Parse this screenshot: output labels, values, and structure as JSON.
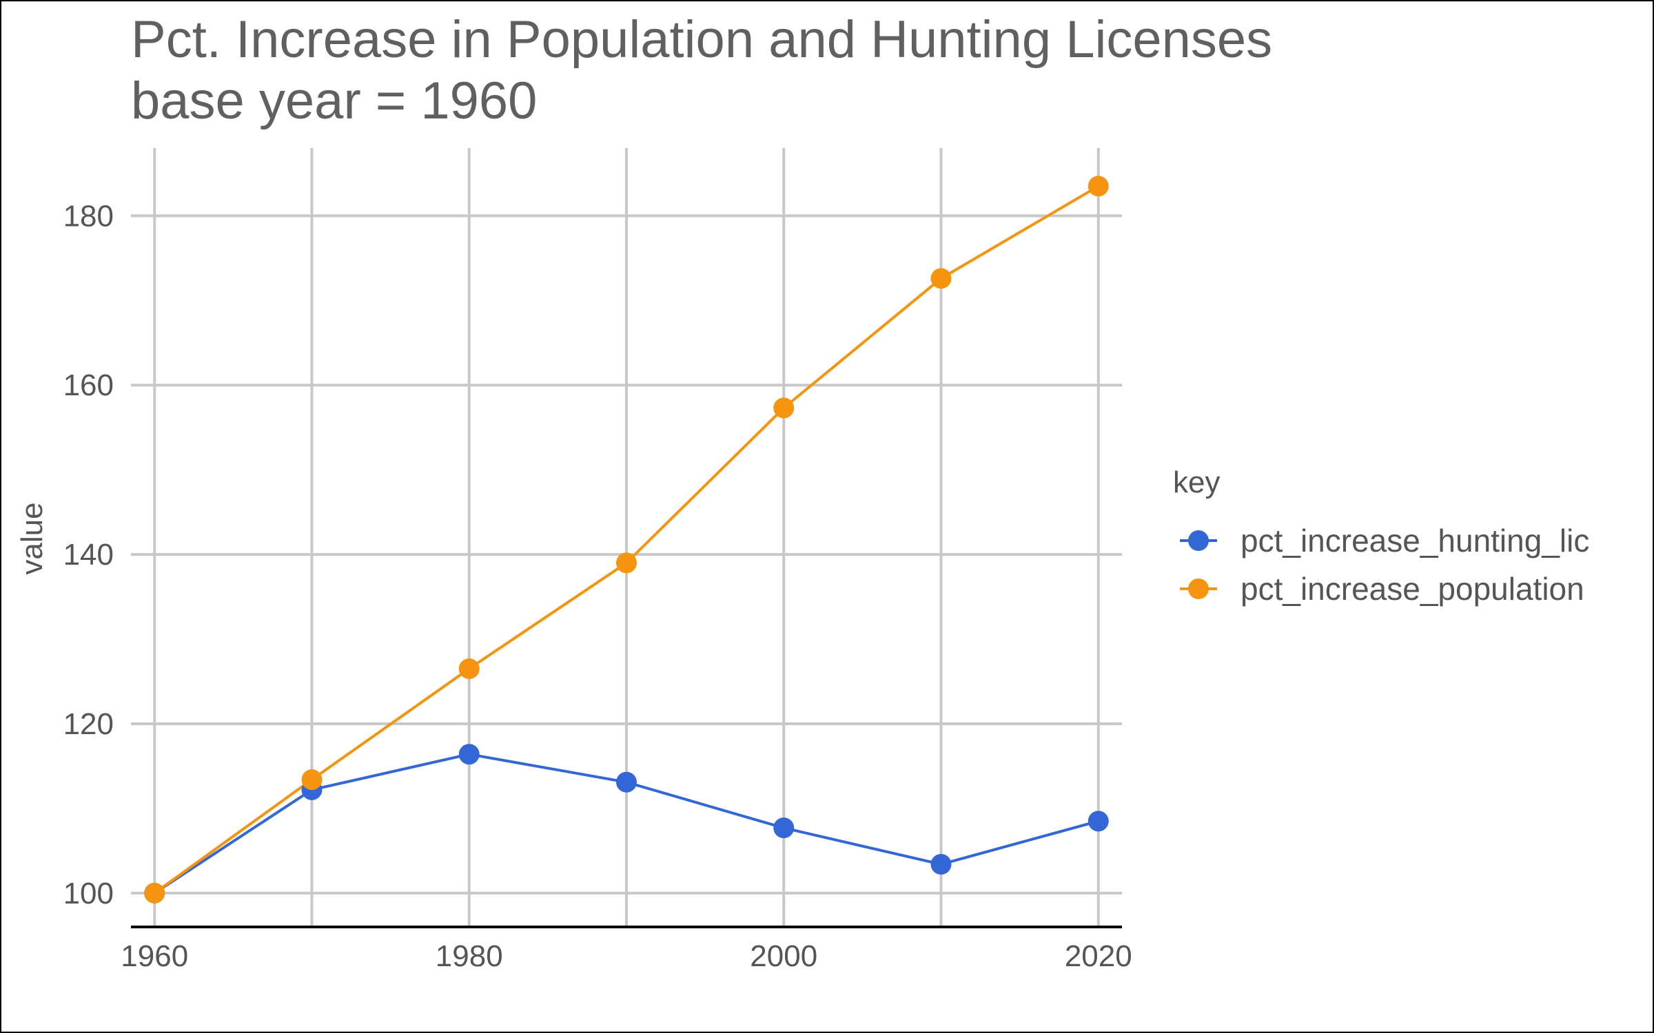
{
  "chart_data": {
    "type": "line",
    "title": "Pct. Increase in Population and Hunting Licenses",
    "subtitle": "base year = 1960",
    "xlabel": "",
    "ylabel": "value",
    "x": [
      1960,
      1970,
      1980,
      1990,
      2000,
      2010,
      2020
    ],
    "xticks": [
      "1960",
      "1980",
      "2000",
      "2020"
    ],
    "yticks": [
      "100",
      "120",
      "140",
      "160",
      "180"
    ],
    "xlim": [
      1958.5,
      2021.5
    ],
    "ylim": [
      96,
      188
    ],
    "grid": true,
    "legend": {
      "title": "key",
      "position": "right"
    },
    "series": [
      {
        "name": "pct_increase_hunting_lic",
        "color": "#3367d6",
        "values": [
          100,
          112.2,
          116.4,
          113.1,
          107.7,
          103.4,
          108.5
        ]
      },
      {
        "name": "pct_increase_population",
        "color": "#f4940f",
        "values": [
          100,
          113.4,
          126.5,
          139,
          157.3,
          172.6,
          183.5
        ]
      }
    ]
  }
}
